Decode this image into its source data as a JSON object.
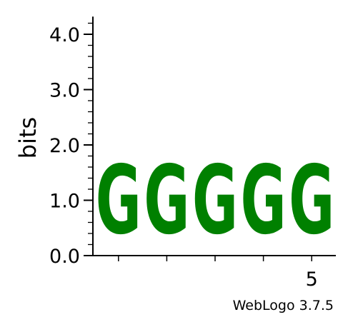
{
  "chart_data": {
    "type": "sequence-logo",
    "ylabel": "bits",
    "ylim": [
      0,
      4.32
    ],
    "y_ticks": [
      "0.0",
      "1.0",
      "2.0",
      "3.0",
      "4.0"
    ],
    "y_tick_values": [
      0,
      1,
      2,
      3,
      4
    ],
    "x_ticks": [
      {
        "position": 5,
        "label": "5"
      }
    ],
    "positions": [
      1,
      2,
      3,
      4,
      5
    ],
    "stacks": [
      [
        {
          "letter": "G",
          "bits": 2.0
        }
      ],
      [
        {
          "letter": "G",
          "bits": 2.0
        }
      ],
      [
        {
          "letter": "G",
          "bits": 2.0
        }
      ],
      [
        {
          "letter": "G",
          "bits": 2.0
        }
      ],
      [
        {
          "letter": "G",
          "bits": 2.0
        }
      ]
    ],
    "colors": {
      "G": "#008000"
    }
  },
  "credit": "WebLogo 3.7.5"
}
